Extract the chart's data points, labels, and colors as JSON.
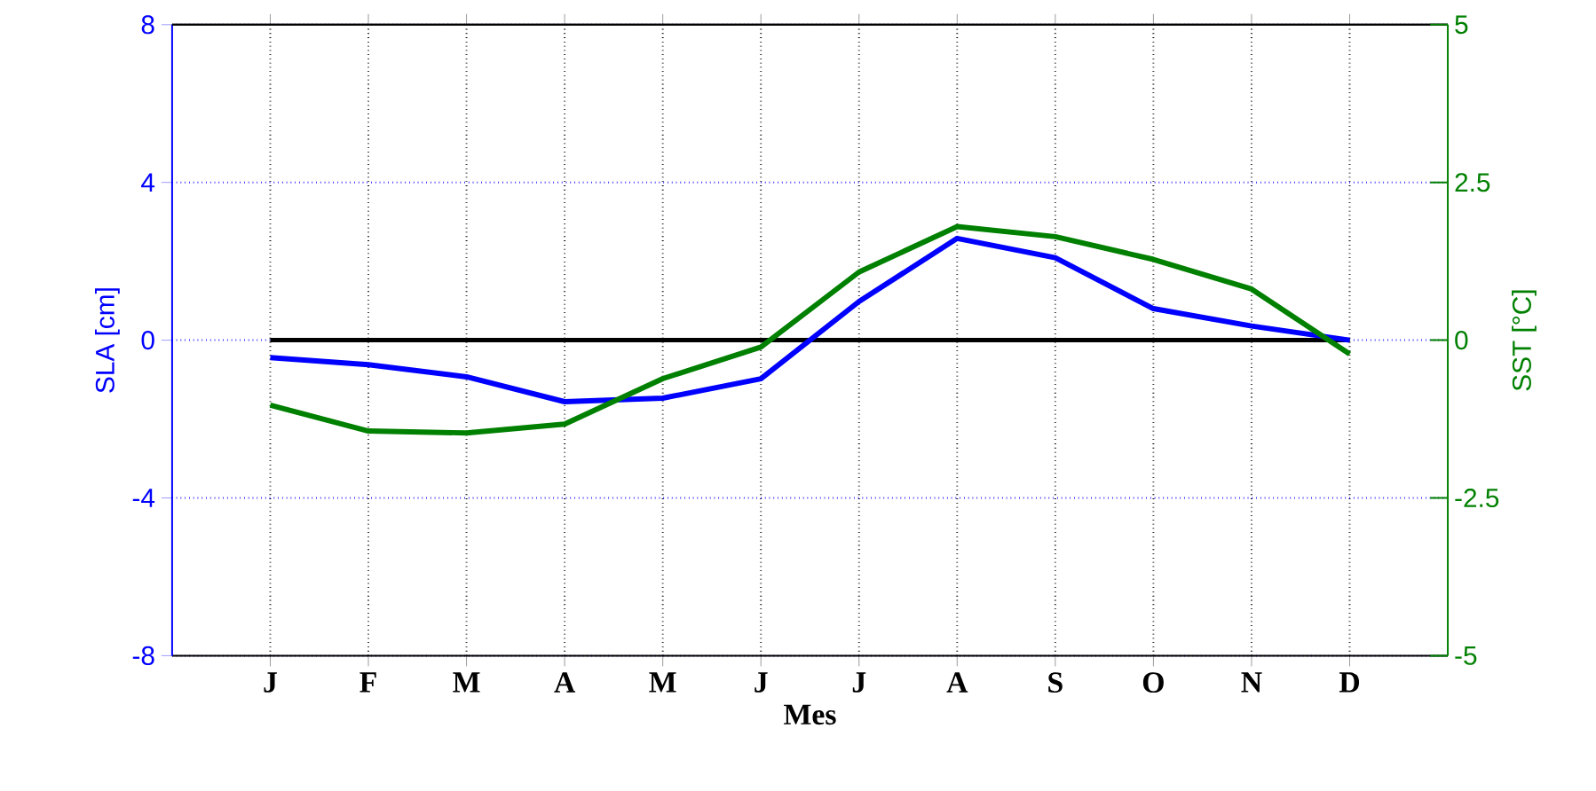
{
  "chart_data": {
    "type": "line",
    "xlabel": "Mes",
    "ylabel": "SLA [cm]",
    "y2label": "SST [°C]",
    "categories": [
      "J",
      "F",
      "M",
      "A",
      "M",
      "J",
      "J",
      "A",
      "S",
      "O",
      "N",
      "D"
    ],
    "series": [
      {
        "color": "#0000ff",
        "values": [
          -0.44,
          -0.62,
          -0.93,
          -1.56,
          -1.47,
          -0.98,
          0.98,
          2.58,
          2.09,
          0.8,
          0.36,
          0.0
        ]
      },
      {
        "color": "#008000",
        "axis": "y2",
        "values": [
          -1.03,
          -1.44,
          -1.47,
          -1.33,
          -0.61,
          -0.11,
          1.08,
          1.8,
          1.64,
          1.28,
          0.81,
          -0.22
        ]
      }
    ],
    "ylim": [
      -8,
      8
    ],
    "yticks": [
      -8,
      -4,
      0,
      4,
      8
    ],
    "y2lim": [
      -5,
      5
    ],
    "y2ticks": [
      -5,
      -2.5,
      0,
      2.5,
      5
    ],
    "ref_lines": [
      {
        "axis": "y",
        "value": 0,
        "color": "#000000"
      }
    ],
    "grid": true,
    "marker": "none",
    "line_style": "solid"
  }
}
